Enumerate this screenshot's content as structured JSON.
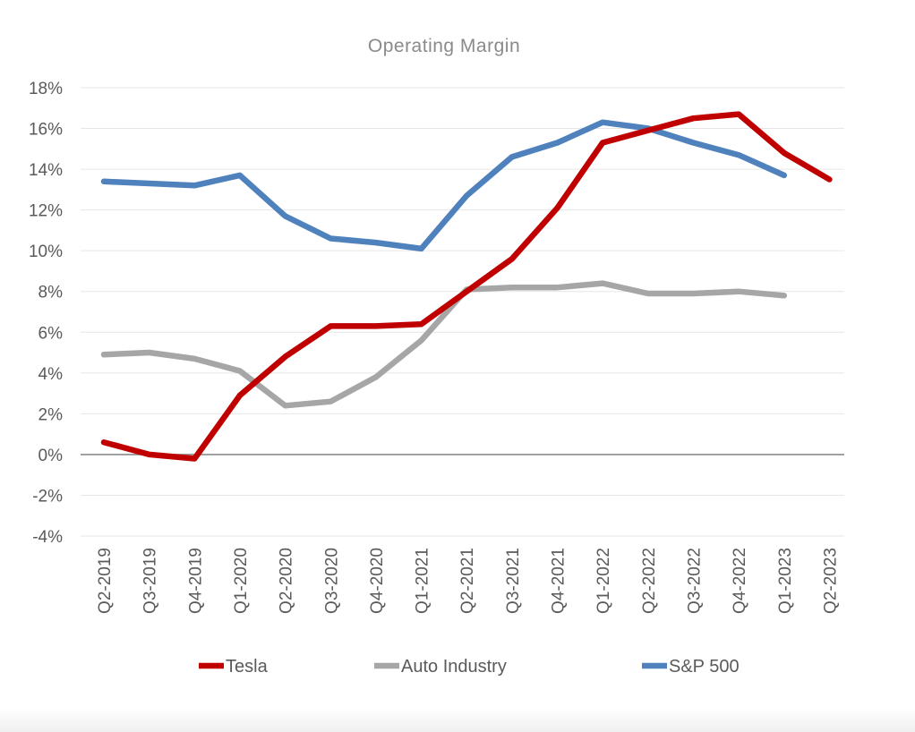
{
  "chart_data": {
    "type": "line",
    "title": "Operating Margin",
    "categories": [
      "Q2-2019",
      "Q3-2019",
      "Q4-2019",
      "Q1-2020",
      "Q2-2020",
      "Q3-2020",
      "Q4-2020",
      "Q1-2021",
      "Q2-2021",
      "Q3-2021",
      "Q4-2021",
      "Q1-2022",
      "Q2-2022",
      "Q3-2022",
      "Q4-2022",
      "Q1-2023",
      "Q2-2023"
    ],
    "y_ticks": [
      "18%",
      "16%",
      "14%",
      "12%",
      "10%",
      "8%",
      "6%",
      "4%",
      "2%",
      "0%",
      "-2%",
      "-4%"
    ],
    "ylim": [
      -4,
      18
    ],
    "grid": true,
    "legend_position": "bottom",
    "series": [
      {
        "name": "Tesla",
        "color": "#c00000",
        "values": [
          0.6,
          0.0,
          -0.2,
          2.9,
          4.8,
          6.3,
          6.3,
          6.4,
          8.0,
          9.6,
          12.1,
          15.3,
          15.9,
          16.5,
          16.7,
          14.8,
          13.5
        ]
      },
      {
        "name": "Auto Industry",
        "color": "#a6a6a6",
        "values": [
          4.9,
          5.0,
          4.7,
          4.1,
          2.4,
          2.6,
          3.8,
          5.6,
          8.1,
          8.2,
          8.2,
          8.4,
          7.9,
          7.9,
          8.0,
          7.8,
          null
        ]
      },
      {
        "name": "S&P 500",
        "color": "#4f81bd",
        "values": [
          13.4,
          13.3,
          13.2,
          13.7,
          11.7,
          10.6,
          10.4,
          10.1,
          12.7,
          14.6,
          15.3,
          16.3,
          16.0,
          15.3,
          14.7,
          13.7,
          null
        ]
      }
    ]
  }
}
